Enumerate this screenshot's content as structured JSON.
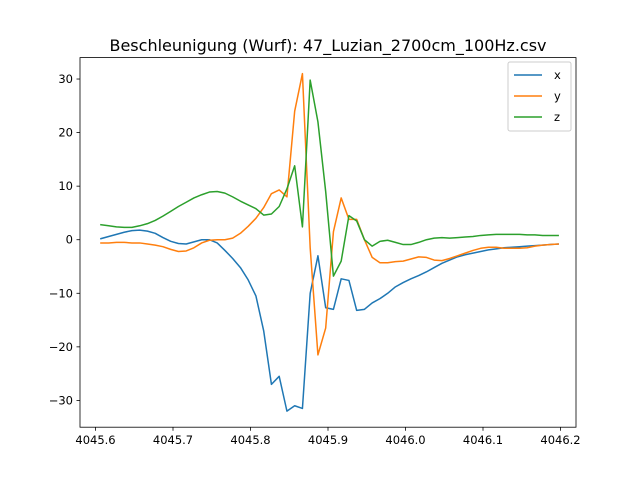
{
  "chart_data": {
    "type": "line",
    "title": "Beschleunigung (Wurf): 47_Luzian_2700cm_100Hz.csv",
    "xlabel": "",
    "ylabel": "",
    "xlim": [
      4045.58,
      4046.22
    ],
    "ylim": [
      -35,
      34
    ],
    "xticks": [
      4045.6,
      4045.7,
      4045.8,
      4045.9,
      4046.0,
      4046.1,
      4046.2
    ],
    "xtick_labels": [
      "4045.6",
      "4045.7",
      "4045.8",
      "4045.9",
      "4046.0",
      "4046.1",
      "4046.2"
    ],
    "yticks": [
      -30,
      -20,
      -10,
      0,
      10,
      20,
      30
    ],
    "ytick_labels": [
      "−30",
      "−20",
      "−10",
      "0",
      "10",
      "20",
      "30"
    ],
    "grid": false,
    "legend_position": "top-right",
    "series": [
      {
        "name": "x",
        "color": "#1f77b4",
        "x": [
          4045.607,
          4045.617,
          4045.627,
          4045.637,
          4045.647,
          4045.657,
          4045.667,
          4045.677,
          4045.687,
          4045.697,
          4045.707,
          4045.717,
          4045.727,
          4045.737,
          4045.747,
          4045.757,
          4045.767,
          4045.777,
          4045.787,
          4045.797,
          4045.807,
          4045.817,
          4045.827,
          4045.837,
          4045.847,
          4045.857,
          4045.867,
          4045.877,
          4045.887,
          4045.897,
          4045.907,
          4045.917,
          4045.927,
          4045.937,
          4045.947,
          4045.957,
          4045.967,
          4045.977,
          4045.987,
          4045.997,
          4046.007,
          4046.017,
          4046.027,
          4046.037,
          4046.047,
          4046.057,
          4046.067,
          4046.077,
          4046.087,
          4046.097,
          4046.107,
          4046.117,
          4046.127,
          4046.137,
          4046.147,
          4046.157,
          4046.167,
          4046.177,
          4046.187,
          4046.197
        ],
        "y": [
          0.2,
          0.6,
          1.0,
          1.4,
          1.7,
          1.8,
          1.6,
          1.2,
          0.4,
          -0.3,
          -0.7,
          -0.8,
          -0.4,
          0.0,
          0.0,
          -0.6,
          -2.0,
          -3.5,
          -5.2,
          -7.5,
          -10.5,
          -17.0,
          -27.0,
          -25.5,
          -32.0,
          -31.0,
          -31.5,
          -10.0,
          -3.0,
          -12.7,
          -13.0,
          -7.3,
          -7.6,
          -13.2,
          -13.0,
          -11.8,
          -11.0,
          -10.0,
          -8.8,
          -8.0,
          -7.3,
          -6.7,
          -6.0,
          -5.2,
          -4.4,
          -3.8,
          -3.2,
          -2.8,
          -2.5,
          -2.2,
          -1.9,
          -1.7,
          -1.5,
          -1.4,
          -1.3,
          -1.2,
          -1.1,
          -1.0,
          -0.9,
          -0.8
        ]
      },
      {
        "name": "y",
        "color": "#ff7f0e",
        "x": [
          4045.607,
          4045.617,
          4045.627,
          4045.637,
          4045.647,
          4045.657,
          4045.667,
          4045.677,
          4045.687,
          4045.697,
          4045.707,
          4045.717,
          4045.727,
          4045.737,
          4045.747,
          4045.757,
          4045.767,
          4045.777,
          4045.787,
          4045.797,
          4045.807,
          4045.817,
          4045.827,
          4045.837,
          4045.847,
          4045.857,
          4045.867,
          4045.877,
          4045.887,
          4045.897,
          4045.907,
          4045.917,
          4045.927,
          4045.937,
          4045.947,
          4045.957,
          4045.967,
          4045.977,
          4045.987,
          4045.997,
          4046.007,
          4046.017,
          4046.027,
          4046.037,
          4046.047,
          4046.057,
          4046.067,
          4046.077,
          4046.087,
          4046.097,
          4046.107,
          4046.117,
          4046.127,
          4046.137,
          4046.147,
          4046.157,
          4046.167,
          4046.177,
          4046.187,
          4046.197
        ],
        "y": [
          -0.6,
          -0.6,
          -0.5,
          -0.5,
          -0.6,
          -0.6,
          -0.8,
          -1.0,
          -1.3,
          -1.8,
          -2.2,
          -2.1,
          -1.5,
          -0.6,
          -0.1,
          0.0,
          0.0,
          0.3,
          1.2,
          2.5,
          4.0,
          6.0,
          8.6,
          9.3,
          8.0,
          24.0,
          31.0,
          -1.5,
          -21.5,
          -16.5,
          1.5,
          7.8,
          3.8,
          3.8,
          0.0,
          -3.3,
          -4.3,
          -4.3,
          -4.1,
          -4.0,
          -3.6,
          -3.2,
          -3.3,
          -3.8,
          -3.9,
          -3.5,
          -3.0,
          -2.5,
          -2.0,
          -1.6,
          -1.4,
          -1.4,
          -1.6,
          -1.6,
          -1.6,
          -1.5,
          -1.2,
          -1.0,
          -0.9,
          -0.8
        ]
      },
      {
        "name": "z",
        "color": "#2ca02c",
        "x": [
          4045.607,
          4045.617,
          4045.627,
          4045.637,
          4045.647,
          4045.657,
          4045.667,
          4045.677,
          4045.687,
          4045.697,
          4045.707,
          4045.717,
          4045.727,
          4045.737,
          4045.747,
          4045.757,
          4045.767,
          4045.777,
          4045.787,
          4045.797,
          4045.807,
          4045.817,
          4045.827,
          4045.837,
          4045.847,
          4045.857,
          4045.867,
          4045.877,
          4045.887,
          4045.897,
          4045.907,
          4045.917,
          4045.927,
          4045.937,
          4045.947,
          4045.957,
          4045.967,
          4045.977,
          4045.987,
          4045.997,
          4046.007,
          4046.017,
          4046.027,
          4046.037,
          4046.047,
          4046.057,
          4046.067,
          4046.077,
          4046.087,
          4046.097,
          4046.107,
          4046.117,
          4046.127,
          4046.137,
          4046.147,
          4046.157,
          4046.167,
          4046.177,
          4046.187,
          4046.197
        ],
        "y": [
          2.8,
          2.6,
          2.4,
          2.3,
          2.3,
          2.6,
          3.0,
          3.6,
          4.4,
          5.3,
          6.2,
          7.0,
          7.8,
          8.4,
          8.9,
          9.0,
          8.7,
          8.0,
          7.2,
          6.5,
          5.8,
          4.6,
          4.8,
          6.2,
          9.5,
          13.8,
          2.4,
          29.8,
          22.0,
          9.0,
          -6.8,
          -4.0,
          4.5,
          3.5,
          0.0,
          -1.2,
          -0.3,
          -0.1,
          -0.5,
          -0.9,
          -0.9,
          -0.5,
          0.0,
          0.3,
          0.4,
          0.3,
          0.4,
          0.5,
          0.6,
          0.8,
          0.9,
          1.0,
          1.0,
          1.0,
          1.0,
          0.9,
          0.9,
          0.8,
          0.8,
          0.8
        ]
      }
    ]
  }
}
